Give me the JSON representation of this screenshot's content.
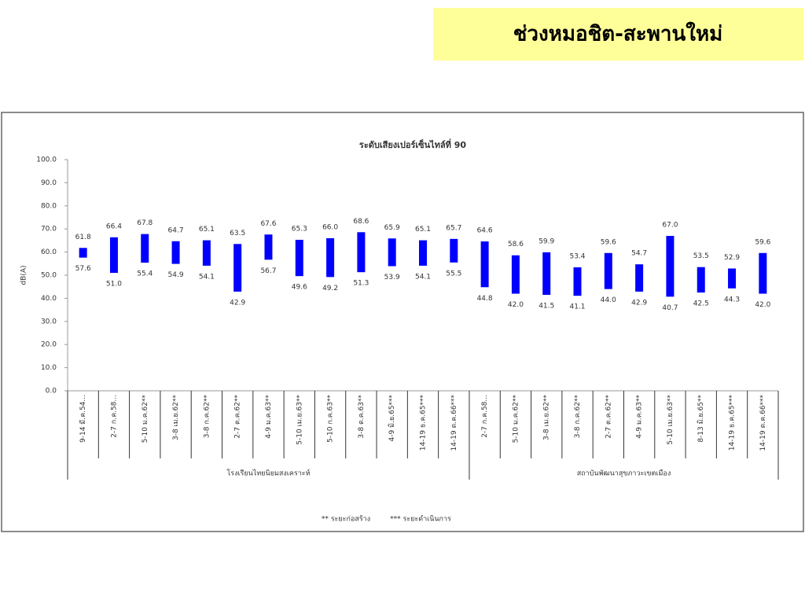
{
  "header": {
    "title": "ช่วงหมอชิต-สะพานใหม่"
  },
  "chart_data": {
    "type": "range-bar",
    "title": "ระดับเสียงเปอร์เซ็นไทล์ที่ 90",
    "ylabel": "dB(A)",
    "groups": [
      {
        "name": "โรงเรียนไทยนิยมสงเคราะห์",
        "categories": [
          "9-14 มี.ค.54...",
          "2-7 ก.ค.58...",
          "5-10 ม.ค.62**",
          "3-8 เม.ย.62**",
          "3-8 ก.ค.62**",
          "2-7 ต.ค.62**",
          "4-9 ม.ค.63**",
          "5-10 เม.ย.63**",
          "5-10 ก.ค.63**",
          "3-8 ต.ค.63**",
          "4-9 มิ.ย.65***",
          "14-19 ธ.ค.65***",
          "14-19 ต.ค.66***"
        ]
      },
      {
        "name": "สถาบันพัฒนาสุขภาวะเขตเมือง",
        "categories": [
          "2-7 ก.ค.58...",
          "5-10 ม.ค.62**",
          "3-8 เม.ย.62**",
          "3-8 ก.ค.62**",
          "2-7 ต.ค.62**",
          "4-9 ม.ค.63**",
          "5-10 เม.ย.63**",
          "8-13 มิ.ย.65**",
          "14-19 ธ.ค.65***",
          "14-19 ต.ค.66***"
        ]
      }
    ],
    "color": "#0000ff",
    "series": [
      {
        "values": [
          57.6,
          51,
          55.4,
          54.9,
          54.1,
          42.9,
          56.7,
          49.6,
          49.2,
          51.3,
          53.9,
          54.1,
          55.5,
          44.8,
          42,
          41.5,
          41.1,
          44,
          42.9,
          40.7,
          42.5,
          44.3,
          42
        ],
        "value_labels": [
          "57.6",
          "51.0",
          "55.4",
          "54.9",
          "54.1",
          "42.9",
          "56.7",
          "49.6",
          "49.2",
          "51.3",
          "53.9",
          "54.1",
          "55.5",
          "44.8",
          "42.0",
          "41.5",
          "41.1",
          "44.0",
          "42.9",
          "40.7",
          "42.5",
          "44.3",
          "42.0"
        ]
      },
      {
        "values": [
          61.8,
          66.4,
          67.8,
          64.7,
          65.1,
          63.5,
          67.6,
          65.3,
          66,
          68.6,
          65.9,
          65.1,
          65.7,
          64.6,
          58.6,
          59.9,
          53.4,
          59.6,
          54.7,
          67,
          53.5,
          52.9,
          59.6
        ],
        "value_labels": [
          "61.8",
          "66.4",
          "67.8",
          "64.7",
          "65.1",
          "63.5",
          "67.6",
          "65.3",
          "66.0",
          "68.6",
          "65.9",
          "65.1",
          "65.7",
          "64.6",
          "58.6",
          "59.9",
          "53.4",
          "59.6",
          "54.7",
          "67.0",
          "53.5",
          "52.9",
          "59.6"
        ]
      }
    ],
    "ylim": [
      0,
      100
    ],
    "yticks": [
      {
        "value": 0,
        "label": "0.0"
      },
      {
        "value": 10,
        "label": "10.0"
      },
      {
        "value": 20,
        "label": "20.0"
      },
      {
        "value": 30,
        "label": "30.0"
      },
      {
        "value": 40,
        "label": "40.0"
      },
      {
        "value": 50,
        "label": "50.0"
      },
      {
        "value": 60,
        "label": "60.0"
      },
      {
        "value": 70,
        "label": "70.0"
      },
      {
        "value": 80,
        "label": "80.0"
      },
      {
        "value": 90,
        "label": "90.0"
      },
      {
        "value": 100,
        "label": "100.0"
      }
    ],
    "notes": [
      "** ระยะก่อสร้าง",
      "*** ระยะดำเนินการ"
    ]
  }
}
